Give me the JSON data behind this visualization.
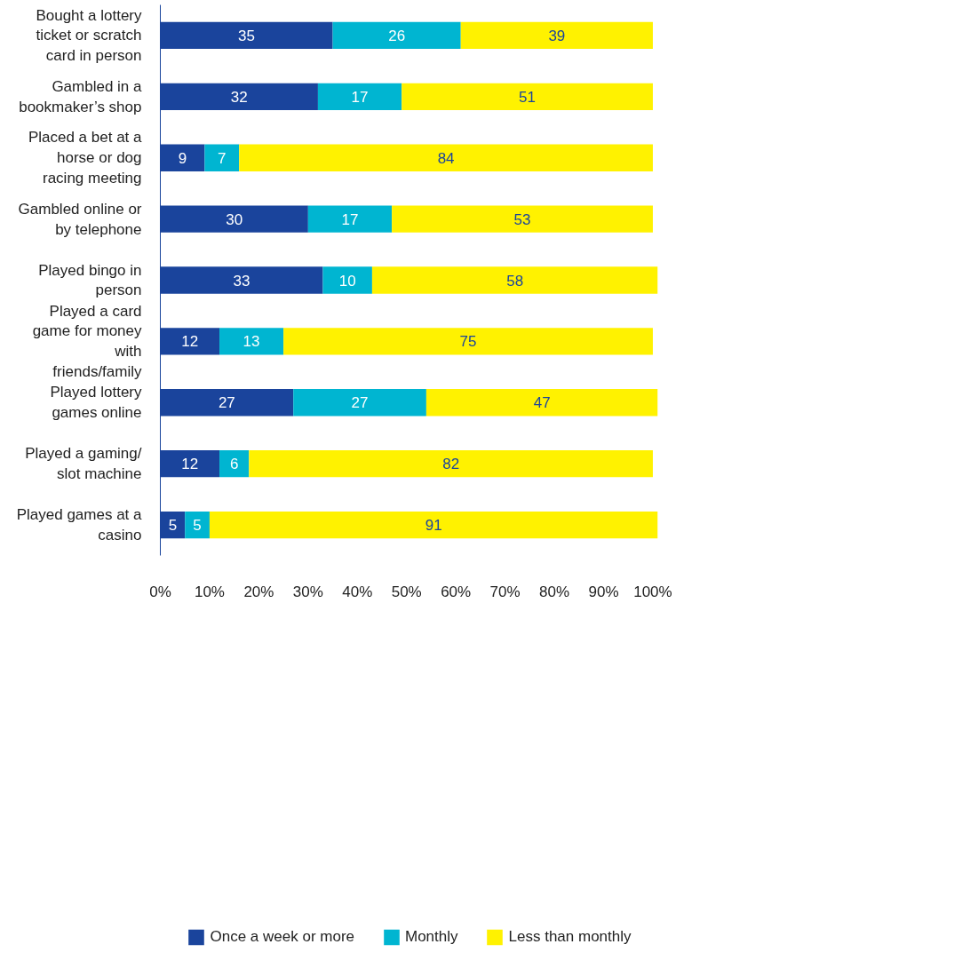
{
  "chart_data": {
    "type": "bar",
    "orientation": "horizontal",
    "stacked": true,
    "data_labels": true,
    "grid": false,
    "legend": "bottom",
    "categories": [
      "Bought a lottery ticket or scratch card in person",
      "Gambled in a bookmaker’s shop",
      "Placed a bet at a horse or dog racing meeting",
      "Gambled online or by telephone",
      "Played bingo in person",
      "Played a card game for money with friends/family",
      "Played lottery games online",
      "Played a gaming/ slot machine",
      "Played games at a casino"
    ],
    "series": [
      {
        "name": "Once a week or more",
        "color": "#1a449c",
        "values": [
          35,
          32,
          9,
          30,
          33,
          12,
          27,
          12,
          5
        ]
      },
      {
        "name": "Monthly",
        "color": "#00b5d1",
        "values": [
          26,
          17,
          7,
          17,
          10,
          13,
          27,
          6,
          5
        ]
      },
      {
        "name": "Less than monthly",
        "color": "#fff200",
        "values": [
          39,
          51,
          84,
          53,
          58,
          75,
          47,
          82,
          91
        ]
      }
    ],
    "xlim": [
      0,
      101
    ],
    "xticks": [
      {
        "value": 0,
        "label": "0%"
      },
      {
        "value": 10,
        "label": "10%"
      },
      {
        "value": 20,
        "label": "20%"
      },
      {
        "value": 30,
        "label": "30%"
      },
      {
        "value": 40,
        "label": "40%"
      },
      {
        "value": 50,
        "label": "50%"
      },
      {
        "value": 60,
        "label": "60%"
      },
      {
        "value": 70,
        "label": "70%"
      },
      {
        "value": 80,
        "label": "80%"
      },
      {
        "value": 90,
        "label": "90%"
      },
      {
        "value": 100,
        "label": "100%"
      }
    ]
  }
}
